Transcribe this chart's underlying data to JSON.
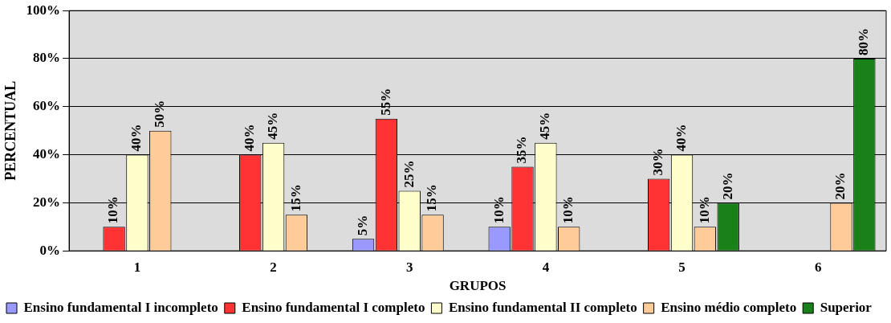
{
  "chart_data": {
    "type": "bar",
    "xlabel": "GRUPOS",
    "ylabel": "PERCENTUAL",
    "categories": [
      "1",
      "2",
      "3",
      "4",
      "5",
      "6"
    ],
    "series": [
      {
        "name": "Ensino fundamental I incompleto",
        "color": "#9999ff",
        "values": [
          null,
          null,
          5,
          10,
          null,
          null
        ],
        "value_labels": [
          null,
          null,
          "5%",
          "10%",
          null,
          null
        ]
      },
      {
        "name": "Ensino fundamental I completo",
        "color": "#ff3333",
        "values": [
          10,
          40,
          55,
          35,
          30,
          null
        ],
        "value_labels": [
          "10%",
          "40%",
          "55%",
          "35%",
          "30%",
          null
        ]
      },
      {
        "name": "Ensino fundamental II completo",
        "color": "#ffffcc",
        "values": [
          40,
          45,
          25,
          45,
          40,
          null
        ],
        "value_labels": [
          "40%",
          "45%",
          "25%",
          "45%",
          "40%",
          null
        ]
      },
      {
        "name": "Ensino médio completo",
        "color": "#ffcc99",
        "values": [
          50,
          15,
          15,
          10,
          10,
          20
        ],
        "value_labels": [
          "50%",
          "15%",
          "15%",
          "10%",
          "10%",
          "20%"
        ]
      },
      {
        "name": "Superior",
        "color": "#1a801a",
        "values": [
          null,
          null,
          null,
          null,
          20,
          80
        ],
        "value_labels": [
          null,
          null,
          null,
          null,
          "20%",
          "80%"
        ]
      }
    ],
    "ylim": [
      0,
      100
    ],
    "yticks": [
      {
        "value": 0,
        "label": "0%"
      },
      {
        "value": 20,
        "label": "20%"
      },
      {
        "value": 40,
        "label": "40%"
      },
      {
        "value": 60,
        "label": "60%"
      },
      {
        "value": 80,
        "label": "80%"
      },
      {
        "value": 100,
        "label": "100%"
      }
    ],
    "grid": "y",
    "legend": "bottom"
  }
}
